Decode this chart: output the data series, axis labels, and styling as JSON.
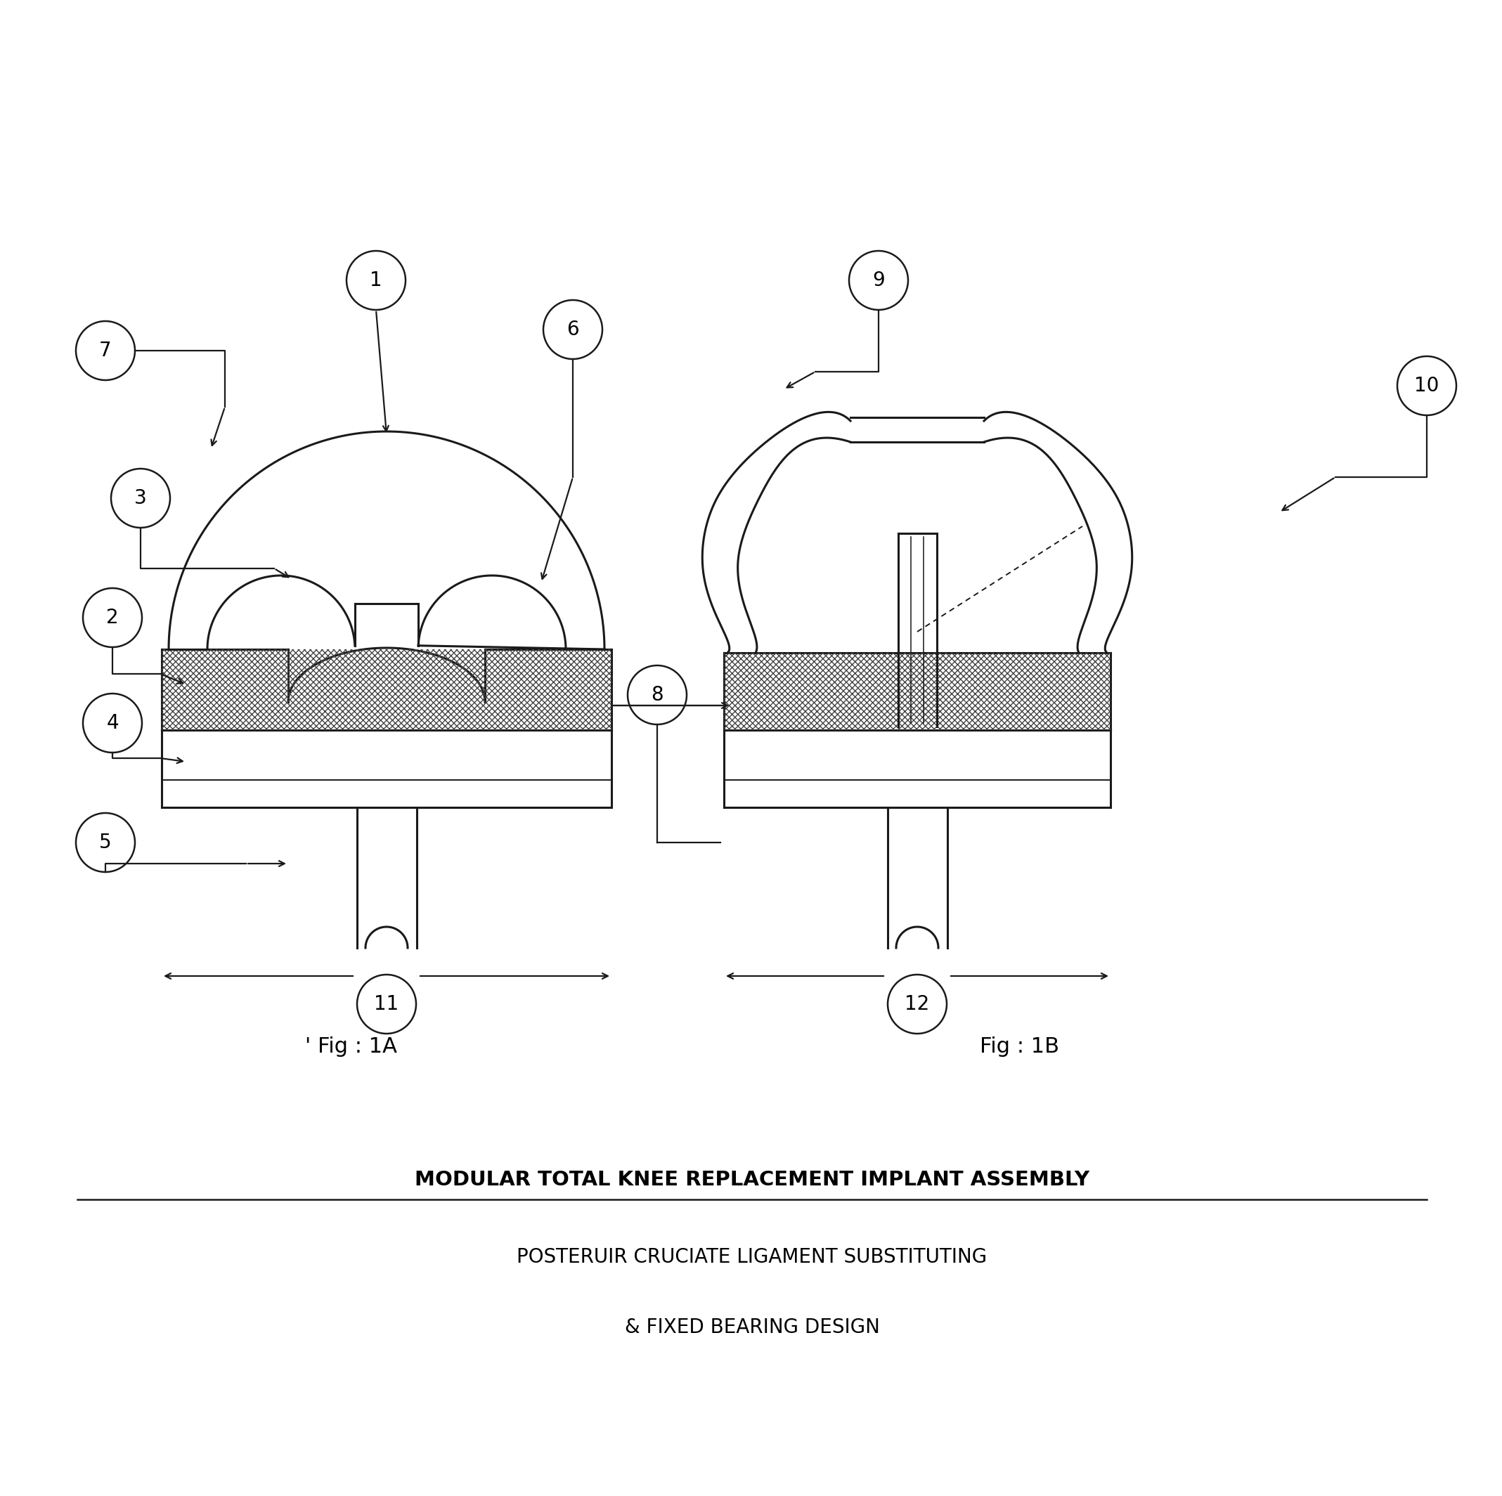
{
  "title1": "MODULAR TOTAL KNEE REPLACEMENT IMPLANT ASSEMBLY",
  "title2": "POSTERUIR CRUCIATE LIGAMENT SUBSTITUTING",
  "title3": "& FIXED BEARING DESIGN",
  "fig1_label": "' Fig : 1A",
  "fig2_label": "Fig : 1B",
  "bg_color": "#ffffff",
  "line_color": "#1a1a1a",
  "lw_main": 2.2,
  "lw_thin": 1.4,
  "lw_label": 1.6,
  "circle_r": 0.42,
  "fontsize_num": 20,
  "fontsize_fig": 22,
  "fontsize_title1": 21,
  "fontsize_title23": 20
}
